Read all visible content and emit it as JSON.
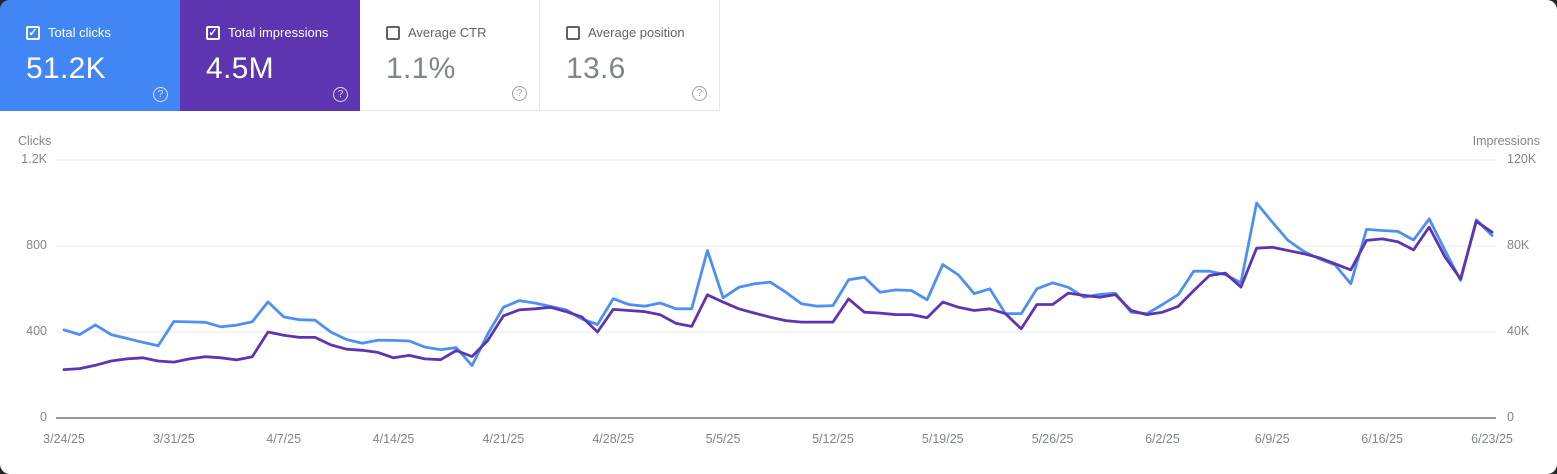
{
  "icons": {
    "help_icon": "?",
    "check_icon": "✓"
  },
  "cards": [
    {
      "label": "Total clicks",
      "value": "51.2K",
      "checked": true,
      "bg": "#4285f4"
    },
    {
      "label": "Total impressions",
      "value": "4.5M",
      "checked": true,
      "bg": "#5e35b1"
    },
    {
      "label": "Average CTR",
      "value": "1.1%",
      "checked": false,
      "bg": "#ffffff"
    },
    {
      "label": "Average position",
      "value": "13.6",
      "checked": false,
      "bg": "#ffffff"
    }
  ],
  "chart_data": {
    "type": "line",
    "grid": true,
    "legend_position": "none",
    "left_axis": {
      "label": "Clicks",
      "ticks": [
        "1.2K",
        "800",
        "400",
        "0"
      ],
      "range": [
        0,
        1200
      ]
    },
    "right_axis": {
      "label": "Impressions",
      "ticks": [
        "120K",
        "80K",
        "40K",
        "0"
      ],
      "range": [
        0,
        120000
      ]
    },
    "x_tick_labels": [
      "3/24/25",
      "3/31/25",
      "4/7/25",
      "4/14/25",
      "4/21/25",
      "4/28/25",
      "5/5/25",
      "5/12/25",
      "5/19/25",
      "5/26/25",
      "6/2/25",
      "6/9/25",
      "6/16/25",
      "6/23/25"
    ],
    "dates": [
      "3/24/25",
      "3/25/25",
      "3/26/25",
      "3/27/25",
      "3/28/25",
      "3/29/25",
      "3/30/25",
      "3/31/25",
      "4/1/25",
      "4/2/25",
      "4/3/25",
      "4/4/25",
      "4/5/25",
      "4/6/25",
      "4/7/25",
      "4/8/25",
      "4/9/25",
      "4/10/25",
      "4/11/25",
      "4/12/25",
      "4/13/25",
      "4/14/25",
      "4/15/25",
      "4/16/25",
      "4/17/25",
      "4/18/25",
      "4/19/25",
      "4/20/25",
      "4/21/25",
      "4/22/25",
      "4/23/25",
      "4/24/25",
      "4/25/25",
      "4/26/25",
      "4/27/25",
      "4/28/25",
      "4/29/25",
      "4/30/25",
      "5/1/25",
      "5/2/25",
      "5/3/25",
      "5/4/25",
      "5/5/25",
      "5/6/25",
      "5/7/25",
      "5/8/25",
      "5/9/25",
      "5/10/25",
      "5/11/25",
      "5/12/25",
      "5/13/25",
      "5/14/25",
      "5/15/25",
      "5/16/25",
      "5/17/25",
      "5/18/25",
      "5/19/25",
      "5/20/25",
      "5/21/25",
      "5/22/25",
      "5/23/25",
      "5/24/25",
      "5/25/25",
      "5/26/25",
      "5/27/25",
      "5/28/25",
      "5/29/25",
      "5/30/25",
      "5/31/25",
      "6/1/25",
      "6/2/25",
      "6/3/25",
      "6/4/25",
      "6/5/25",
      "6/6/25",
      "6/7/25",
      "6/8/25",
      "6/9/25",
      "6/10/25",
      "6/11/25",
      "6/12/25",
      "6/13/25",
      "6/14/25",
      "6/15/25",
      "6/16/25",
      "6/17/25",
      "6/18/25",
      "6/19/25",
      "6/20/25",
      "6/21/25",
      "6/22/25",
      "6/23/25"
    ],
    "series": [
      {
        "name": "Total clicks",
        "axis": "left",
        "color": "#4d90f2",
        "data_name": "clicks-line",
        "values": [
          410,
          388,
          433,
          388,
          370,
          352,
          336,
          449,
          447,
          445,
          424,
          432,
          448,
          540,
          470,
          457,
          455,
          400,
          365,
          348,
          362,
          361,
          358,
          330,
          318,
          327,
          244,
          390,
          515,
          546,
          535,
          519,
          503,
          461,
          435,
          555,
          528,
          520,
          535,
          508,
          508,
          779,
          559,
          608,
          624,
          632,
          585,
          531,
          520,
          523,
          643,
          655,
          585,
          596,
          593,
          550,
          714,
          665,
          578,
          601,
          485,
          485,
          601,
          629,
          608,
          562,
          575,
          580,
          492,
          485,
          528,
          574,
          683,
          683,
          667,
          629,
          1000,
          911,
          826,
          775,
          740,
          712,
          624,
          877,
          872,
          868,
          828,
          926,
          780,
          640,
          922,
          849
        ]
      },
      {
        "name": "Total impressions",
        "axis": "right",
        "color": "#5e35b1",
        "data_name": "impressions-line",
        "values": [
          22500,
          23000,
          24500,
          26500,
          27500,
          28000,
          26500,
          26000,
          27500,
          28500,
          28000,
          27000,
          28500,
          40000,
          38500,
          37500,
          37500,
          34000,
          32000,
          31500,
          30500,
          28000,
          29100,
          27500,
          27100,
          31400,
          28600,
          36000,
          47500,
          50300,
          50800,
          51500,
          49500,
          47000,
          40000,
          50500,
          50000,
          49500,
          48000,
          44000,
          42600,
          57300,
          53900,
          50800,
          48800,
          46900,
          45300,
          44600,
          44600,
          44600,
          55400,
          49200,
          48800,
          48100,
          48100,
          46600,
          53900,
          51500,
          50000,
          50800,
          48500,
          41500,
          52800,
          52800,
          58100,
          57000,
          56200,
          57400,
          50000,
          48100,
          49200,
          51900,
          59300,
          66300,
          67400,
          60900,
          79000,
          79400,
          77900,
          76400,
          74500,
          71700,
          68900,
          82600,
          83300,
          82000,
          78200,
          88800,
          75000,
          64700,
          91500,
          86400
        ]
      }
    ]
  }
}
